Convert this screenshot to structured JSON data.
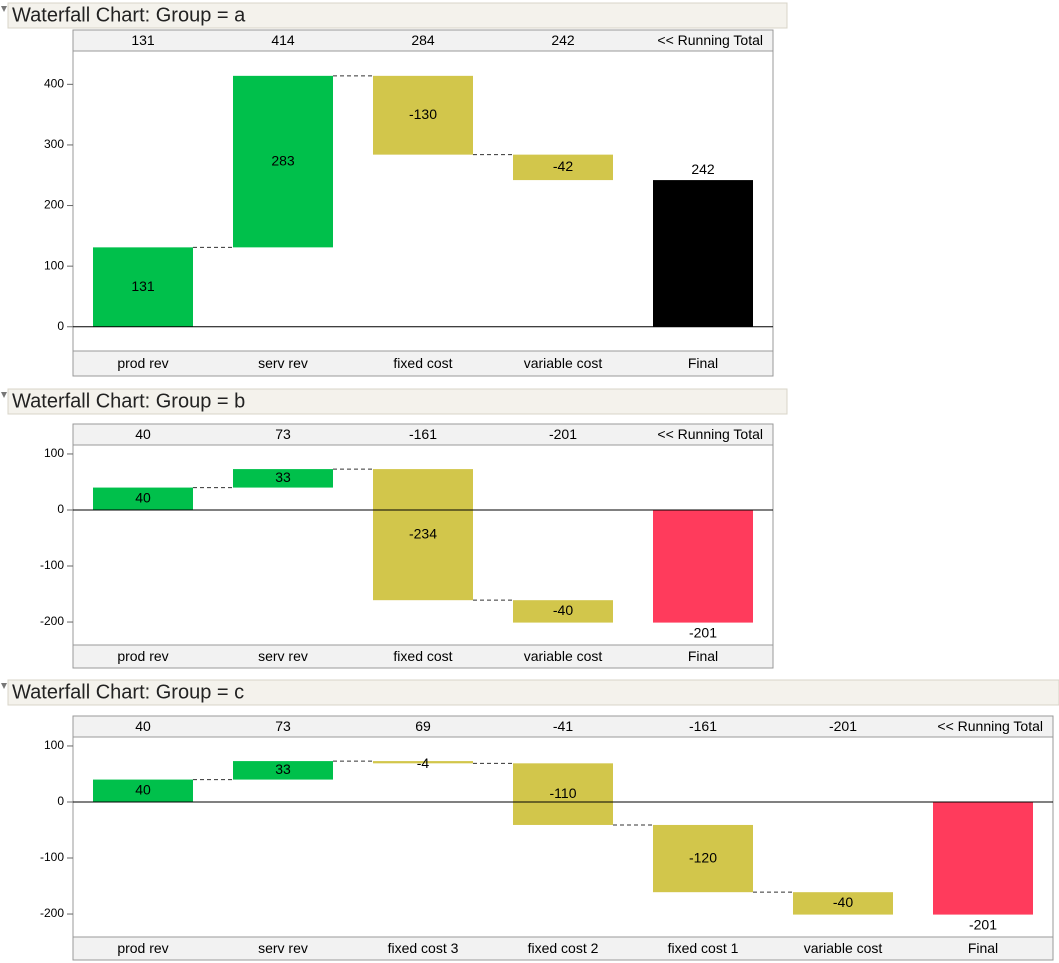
{
  "chart_data": [
    {
      "type": "waterfall",
      "title": "Waterfall Chart: Group = a",
      "categories": [
        "prod rev",
        "serv rev",
        "fixed cost",
        "variable cost",
        "Final"
      ],
      "values": [
        131,
        283,
        -130,
        -42,
        242
      ],
      "colors": [
        "#00c04b",
        "#00c04b",
        "#d2c64b",
        "#d2c64b",
        "#000000"
      ],
      "running_totals": [
        131,
        414,
        284,
        242
      ],
      "running_total_label": "<< Running Total",
      "ylim": [
        -40,
        455
      ],
      "yticks": [
        0,
        100,
        200,
        300,
        400
      ]
    },
    {
      "type": "waterfall",
      "title": "Waterfall Chart: Group = b",
      "categories": [
        "prod rev",
        "serv rev",
        "fixed cost",
        "variable cost",
        "Final"
      ],
      "values": [
        40,
        33,
        -234,
        -40,
        -201
      ],
      "colors": [
        "#00c04b",
        "#00c04b",
        "#d2c64b",
        "#d2c64b",
        "#ff3b5c"
      ],
      "running_totals": [
        40,
        73,
        -161,
        -201
      ],
      "running_total_label": "<< Running Total",
      "ylim": [
        -241,
        116
      ],
      "yticks": [
        -200,
        -100,
        0,
        100
      ]
    },
    {
      "type": "waterfall",
      "title": "Waterfall Chart: Group = c",
      "categories": [
        "prod rev",
        "serv rev",
        "fixed cost 3",
        "fixed cost 2",
        "fixed cost 1",
        "variable cost",
        "Final"
      ],
      "values": [
        40,
        33,
        -4,
        -110,
        -120,
        -40,
        -201
      ],
      "colors": [
        "#00c04b",
        "#00c04b",
        "#d2c64b",
        "#d2c64b",
        "#d2c64b",
        "#d2c64b",
        "#ff3b5c"
      ],
      "running_totals": [
        40,
        73,
        69,
        -41,
        -161,
        -201
      ],
      "running_total_label": "<< Running Total",
      "ylim": [
        -241,
        116
      ],
      "yticks": [
        -200,
        -100,
        0,
        100
      ]
    }
  ]
}
